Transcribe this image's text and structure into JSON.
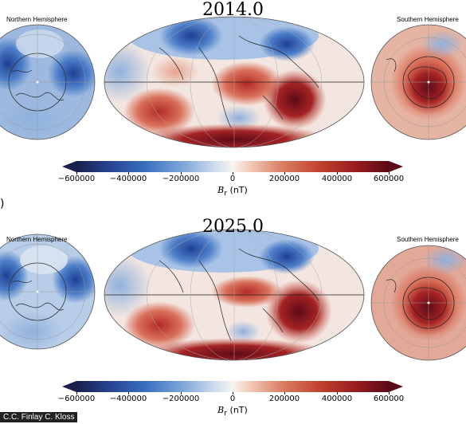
{
  "panels": [
    {
      "year": "2014.0",
      "north_label": "Northern Hemisphere",
      "south_label": "Southern Hemisphere",
      "colorbar": {
        "ticks": [
          "−600000",
          "−400000",
          "−200000",
          "0",
          "200000",
          "400000",
          "600000"
        ],
        "label_symbol": "B",
        "label_sub": "r",
        "label_unit": " (nT)"
      }
    },
    {
      "year": "2025.0",
      "north_label": "Northern Hemisphere",
      "south_label": "Southern Hemisphere",
      "colorbar": {
        "ticks": [
          "−600000",
          "−400000",
          "−200000",
          "0",
          "200000",
          "400000",
          "600000"
        ],
        "label_symbol": "B",
        "label_sub": "r",
        "label_unit": " (nT)"
      }
    }
  ],
  "side_mark": ")",
  "credit": "C.C. Finlay C. Kloss"
}
